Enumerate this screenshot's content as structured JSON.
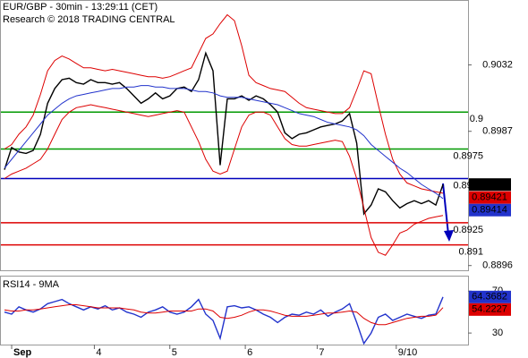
{
  "chart_data": [
    {
      "type": "line",
      "title": "EUR/GBP - 30min - 13:29:11 (CET)",
      "subtitle": "Research © 2018 TRADING CENTRAL",
      "xlim": [
        0,
        61
      ],
      "ylim": [
        0.8894,
        0.9076
      ],
      "yticks": [
        0.8896,
        0.8987,
        0.9032
      ],
      "series": [
        {
          "color": "#000000",
          "values": [
            0.8961,
            0.8976,
            0.8973,
            0.8972,
            0.8974,
            0.8985,
            0.9006,
            0.9016,
            0.9022,
            0.9023,
            0.902,
            0.9019,
            0.9022,
            0.902,
            0.902,
            0.9019,
            0.902,
            0.9016,
            0.9011,
            0.9006,
            0.9009,
            0.9013,
            0.9009,
            0.9011,
            0.9016,
            0.9017,
            0.9014,
            0.9022,
            0.904,
            0.9028,
            0.8964,
            0.9009,
            0.9009,
            0.9011,
            0.9008,
            0.9011,
            0.9009,
            0.9005,
            0.9,
            0.8986,
            0.8982,
            0.8985,
            0.8986,
            0.8988,
            0.899,
            0.8991,
            0.8992,
            0.8994,
            0.8999,
            0.8979,
            0.8931,
            0.8937,
            0.8948,
            0.8946,
            0.894,
            0.8935,
            0.8938,
            0.894,
            0.8938,
            0.894,
            0.8937,
            0.89509
          ]
        },
        {
          "color": "#dd0000",
          "values": [
            0.8975,
            0.8978,
            0.8985,
            0.899,
            0.8998,
            0.9012,
            0.9028,
            0.9035,
            0.9038,
            0.9036,
            0.9033,
            0.903,
            0.903,
            0.9029,
            0.9028,
            0.9029,
            0.9028,
            0.9027,
            0.9026,
            0.9025,
            0.9024,
            0.9024,
            0.9023,
            0.9024,
            0.9026,
            0.9028,
            0.903,
            0.904,
            0.905,
            0.9053,
            0.906,
            0.9066,
            0.9062,
            0.9045,
            0.9025,
            0.902,
            0.9018,
            0.9016,
            0.9015,
            0.9014,
            0.901,
            0.9006,
            0.9003,
            0.9002,
            0.9001,
            0.9,
            0.8999,
            0.8999,
            0.9003,
            0.9015,
            0.9028,
            0.9026,
            0.9005,
            0.8985,
            0.8968,
            0.8958,
            0.8952,
            0.895,
            0.8948,
            0.8947,
            0.8946,
            0.8945
          ]
        },
        {
          "color": "#dd0000",
          "values": [
            0.8955,
            0.8958,
            0.896,
            0.8962,
            0.8965,
            0.8968,
            0.8975,
            0.8985,
            0.8995,
            0.9,
            0.9003,
            0.9004,
            0.9005,
            0.9004,
            0.9003,
            0.9002,
            0.9001,
            0.9,
            0.8999,
            0.8998,
            0.8997,
            0.8998,
            0.8999,
            0.9,
            0.9001,
            0.9,
            0.899,
            0.898,
            0.8968,
            0.896,
            0.8958,
            0.896,
            0.8975,
            0.899,
            0.8998,
            0.9,
            0.9,
            0.8998,
            0.899,
            0.8982,
            0.8978,
            0.8977,
            0.8977,
            0.8978,
            0.8979,
            0.898,
            0.8981,
            0.898,
            0.897,
            0.8955,
            0.8935,
            0.8915,
            0.8905,
            0.8903,
            0.891,
            0.8918,
            0.892,
            0.8924,
            0.8926,
            0.8928,
            0.8929,
            0.893
          ]
        },
        {
          "color": "#2233cc",
          "values": [
            0.8962,
            0.8968,
            0.8974,
            0.898,
            0.8986,
            0.8992,
            0.8998,
            0.9002,
            0.9006,
            0.9009,
            0.9011,
            0.9012,
            0.9013,
            0.9014,
            0.9015,
            0.9016,
            0.9016,
            0.9017,
            0.9017,
            0.9018,
            0.9018,
            0.9017,
            0.9017,
            0.9016,
            0.9016,
            0.9016,
            0.9015,
            0.9014,
            0.9014,
            0.9013,
            0.9011,
            0.901,
            0.901,
            0.901,
            0.9009,
            0.9008,
            0.9007,
            0.9006,
            0.9005,
            0.9003,
            0.9001,
            0.8999,
            0.8998,
            0.8997,
            0.8995,
            0.8993,
            0.8992,
            0.8991,
            0.899,
            0.8988,
            0.8984,
            0.8978,
            0.8974,
            0.897,
            0.8966,
            0.8962,
            0.8959,
            0.8955,
            0.8951,
            0.8948,
            0.8945,
            0.89414
          ]
        }
      ],
      "levels": [
        {
          "value": 0.9,
          "color": "#009900"
        },
        {
          "value": 0.8975,
          "color": "#009900"
        },
        {
          "value": 0.8955,
          "color": "#0000bb"
        },
        {
          "value": 0.8925,
          "color": "#dd0000"
        },
        {
          "value": 0.891,
          "color": "#dd0000"
        }
      ],
      "extra_box": {
        "value": 0.89421,
        "color": "#dd0000"
      }
    },
    {
      "type": "line",
      "title": "RSI14 - 9MA",
      "xlim": [
        0,
        61
      ],
      "xticks": [
        {
          "value": 1,
          "label": "Sep"
        },
        {
          "value": 12.5,
          "label": "4"
        },
        {
          "value": 23,
          "label": "5"
        },
        {
          "value": 33.5,
          "label": "6"
        },
        {
          "value": 43.5,
          "label": "7"
        },
        {
          "value": 54.5,
          "label": "9/10"
        }
      ],
      "ylim": [
        19,
        83
      ],
      "yticks": [
        30,
        70
      ],
      "series": [
        {
          "color": "#2233cc",
          "values": [
            50,
            48,
            55,
            52,
            50,
            53,
            58,
            60,
            62,
            58,
            55,
            52,
            55,
            53,
            56,
            52,
            54,
            50,
            48,
            45,
            50,
            52,
            55,
            50,
            48,
            50,
            55,
            62,
            48,
            42,
            25,
            55,
            56,
            54,
            55,
            52,
            48,
            45,
            40,
            45,
            48,
            47,
            50,
            48,
            52,
            46,
            50,
            53,
            58,
            40,
            20,
            30,
            45,
            48,
            42,
            45,
            48,
            46,
            44,
            47,
            48,
            64.3682
          ]
        },
        {
          "color": "#dd0000",
          "values": [
            52,
            51,
            51,
            52,
            52,
            53,
            54,
            55,
            56,
            57,
            57,
            56,
            55,
            54,
            54,
            54,
            54,
            53,
            52,
            50,
            49,
            49,
            50,
            51,
            51,
            51,
            51,
            53,
            53,
            51,
            45,
            44,
            45,
            47,
            50,
            52,
            52,
            51,
            49,
            47,
            46,
            46,
            46,
            47,
            48,
            49,
            49,
            50,
            51,
            50,
            44,
            40,
            38,
            38,
            40,
            42,
            44,
            45,
            46,
            46,
            47,
            54.2227
          ]
        }
      ]
    }
  ]
}
